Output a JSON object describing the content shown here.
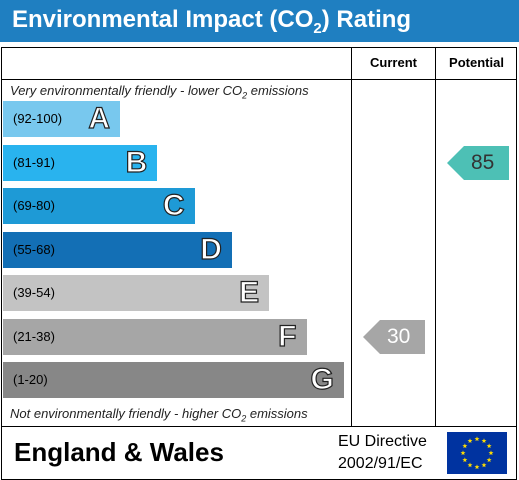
{
  "header": {
    "title_main": "Environmental Impact (CO",
    "title_sub": "2",
    "title_end": ") Rating",
    "bg_color": "#1f7fc1"
  },
  "columns": {
    "current_label": "Current",
    "potential_label": "Potential"
  },
  "notes": {
    "top_main": "Very environmentally friendly - lower CO",
    "top_sub": "2",
    "top_end": " emissions",
    "bottom_main": "Not environmentally friendly - higher CO",
    "bottom_sub": "2",
    "bottom_end": " emissions"
  },
  "bands": [
    {
      "range": "(92-100)",
      "letter": "A",
      "color": "#78c8ee"
    },
    {
      "range": "(81-91)",
      "letter": "B",
      "color": "#29b3ee"
    },
    {
      "range": "(69-80)",
      "letter": "C",
      "color": "#1e9ad6"
    },
    {
      "range": "(55-68)",
      "letter": "D",
      "color": "#136fb5"
    },
    {
      "range": "(39-54)",
      "letter": "E",
      "color": "#c3c3c3"
    },
    {
      "range": "(21-38)",
      "letter": "F",
      "color": "#a6a6a6"
    },
    {
      "range": "(1-20)",
      "letter": "G",
      "color": "#878787"
    }
  ],
  "ratings": {
    "current": {
      "value": "30",
      "band": "F",
      "color": "#a6a6a6"
    },
    "potential": {
      "value": "85",
      "band": "B",
      "color": "#4dc0b5"
    }
  },
  "footer": {
    "region": "England & Wales",
    "directive_line1": "EU Directive",
    "directive_line2": "2002/91/EC",
    "flag_color": "#0033a0",
    "star_color": "#ffdd00"
  }
}
